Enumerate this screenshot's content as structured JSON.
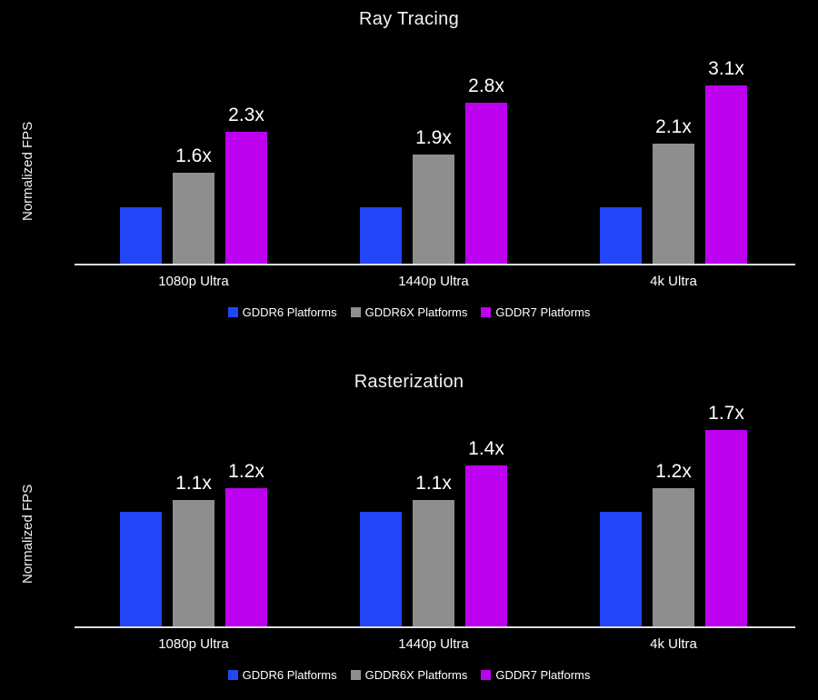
{
  "page": {
    "background": "#000000"
  },
  "colors": {
    "gddr6": "#2346f8",
    "gddr6x": "#8e8e8e",
    "gddr7": "#be00f0",
    "axis": "#dcdcdc",
    "text": "#ffffff"
  },
  "chart_data": [
    {
      "type": "bar",
      "title": "Ray Tracing",
      "xlabel": "",
      "ylabel": "Normalized FPS",
      "ylim": [
        0,
        3.6
      ],
      "grid": false,
      "legend_position": "bottom-center",
      "categories": [
        "1080p Ultra",
        "1440p Ultra",
        "4k Ultra"
      ],
      "series": [
        {
          "name": "GDDR6 Platforms",
          "color_key": "gddr6",
          "values": [
            1.0,
            1.0,
            1.0
          ],
          "labels": [
            "",
            "",
            ""
          ]
        },
        {
          "name": "GDDR6X Platforms",
          "color_key": "gddr6x",
          "values": [
            1.6,
            1.9,
            2.1
          ],
          "labels": [
            "1.6x",
            "1.9x",
            "2.1x"
          ]
        },
        {
          "name": "GDDR7 Platforms",
          "color_key": "gddr7",
          "values": [
            2.3,
            2.8,
            3.1
          ],
          "labels": [
            "2.3x",
            "2.8x",
            "3.1x"
          ]
        }
      ]
    },
    {
      "type": "bar",
      "title": "Rasterization",
      "xlabel": "",
      "ylabel": "Normalized FPS",
      "ylim": [
        0,
        2.0
      ],
      "grid": false,
      "legend_position": "bottom-center",
      "categories": [
        "1080p Ultra",
        "1440p Ultra",
        "4k Ultra"
      ],
      "series": [
        {
          "name": "GDDR6 Platforms",
          "color_key": "gddr6",
          "values": [
            1.0,
            1.0,
            1.0
          ],
          "labels": [
            "",
            "",
            ""
          ]
        },
        {
          "name": "GDDR6X Platforms",
          "color_key": "gddr6x",
          "values": [
            1.1,
            1.1,
            1.2
          ],
          "labels": [
            "1.1x",
            "1.1x",
            "1.2x"
          ]
        },
        {
          "name": "GDDR7 Platforms",
          "color_key": "gddr7",
          "values": [
            1.2,
            1.4,
            1.7
          ],
          "labels": [
            "1.2x",
            "1.4x",
            "1.7x"
          ]
        }
      ]
    }
  ]
}
